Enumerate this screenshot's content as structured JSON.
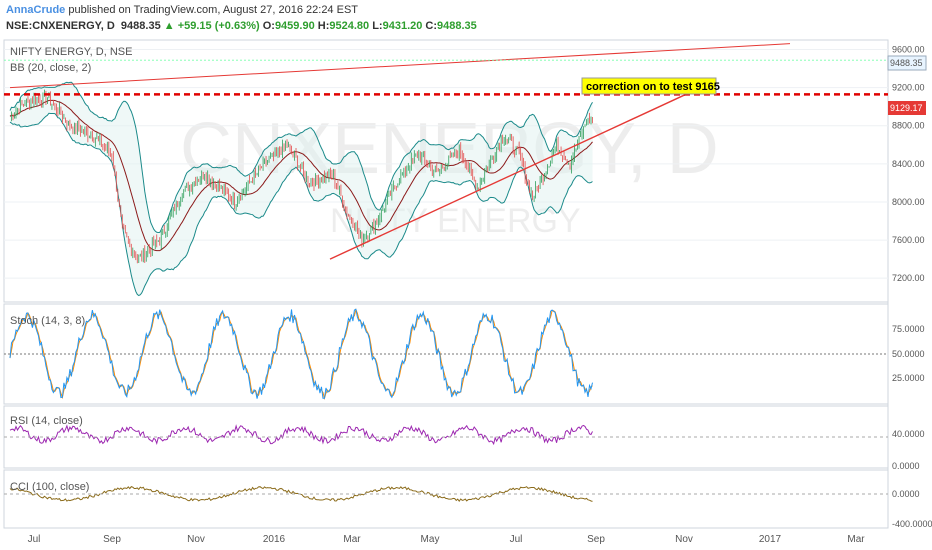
{
  "header": {
    "author": "AnnaCrude",
    "published": " published on TradingView.com, August 27, 2016 22:24 EST",
    "symbol": "NSE:CNXENERGY, D",
    "last": "9488.35",
    "change": "▲ +59.15 (+0.63%)",
    "o_label": "O:",
    "o": "9459.90",
    "h_label": "H:",
    "h": "9524.80",
    "l_label": "L:",
    "l": "9431.20",
    "c_label": "C:",
    "c": "9488.35"
  },
  "panes": {
    "main_title": "NIFTY ENERGY, D, NSE",
    "bb_label": "BB (20, close, 2)",
    "watermark_symbol": "CNXENERGY, D",
    "watermark_name": "NIFTY ENERGY",
    "stoch_label": "Stoch (14, 3, 8)",
    "rsi_label": "RSI (14, close)",
    "cci_label": "CCI (100, close)",
    "annotation": "correction on to test 9165",
    "last_price_tag": "9488.35",
    "level_tag": "9129.17"
  },
  "colors": {
    "candle_up": "#2e9e5b",
    "candle_down": "#e24b4b",
    "bb_band": "#1b8a8a",
    "bb_basis": "#8b1a1a",
    "stoch_k": "#2196f3",
    "stoch_d": "#ff8c00",
    "rsi": "#9c27b0",
    "cci": "#8b6b1a",
    "trendline": "#e53935",
    "annotation_bg": "#ffff00"
  },
  "chart_data": {
    "type": "candlestick",
    "title": "NIFTY ENERGY, D, NSE",
    "x_ticks": [
      "Jul",
      "Sep",
      "Nov",
      "2016",
      "Mar",
      "May",
      "Jul",
      "Sep",
      "Nov",
      "2017",
      "Mar"
    ],
    "price_axis": {
      "ticks": [
        "9600.00",
        "9200.00",
        "8800.00",
        "8400.00",
        "8000.00",
        "7600.00",
        "7200.00"
      ],
      "range": [
        6950,
        9700
      ]
    },
    "price_path_anchors": [
      {
        "x": 0,
        "y": 8900
      },
      {
        "x": 10,
        "y": 9050
      },
      {
        "x": 25,
        "y": 9100
      },
      {
        "x": 40,
        "y": 8800
      },
      {
        "x": 55,
        "y": 8700
      },
      {
        "x": 68,
        "y": 8500
      },
      {
        "x": 75,
        "y": 7700
      },
      {
        "x": 85,
        "y": 7400
      },
      {
        "x": 100,
        "y": 7600
      },
      {
        "x": 115,
        "y": 8100
      },
      {
        "x": 130,
        "y": 8300
      },
      {
        "x": 150,
        "y": 8000
      },
      {
        "x": 170,
        "y": 8400
      },
      {
        "x": 185,
        "y": 8600
      },
      {
        "x": 200,
        "y": 8200
      },
      {
        "x": 215,
        "y": 8300
      },
      {
        "x": 225,
        "y": 7900
      },
      {
        "x": 235,
        "y": 7600
      },
      {
        "x": 245,
        "y": 7800
      },
      {
        "x": 258,
        "y": 8200
      },
      {
        "x": 272,
        "y": 8500
      },
      {
        "x": 285,
        "y": 8300
      },
      {
        "x": 300,
        "y": 8550
      },
      {
        "x": 312,
        "y": 8150
      },
      {
        "x": 320,
        "y": 8400
      },
      {
        "x": 330,
        "y": 8700
      },
      {
        "x": 340,
        "y": 8500
      },
      {
        "x": 349,
        "y": 8050
      },
      {
        "x": 355,
        "y": 8250
      },
      {
        "x": 365,
        "y": 8600
      },
      {
        "x": 374,
        "y": 8400
      },
      {
        "x": 385,
        "y": 8850
      }
    ],
    "bollinger": {
      "upper_offset": 360,
      "lower_offset": 360
    },
    "trendlines": [
      {
        "name": "rising channel top",
        "from": {
          "x": 0,
          "y": 9200
        },
        "to": {
          "x": 390,
          "y": 9620
        }
      },
      {
        "name": "support trend",
        "from": {
          "x": 160,
          "y": 7400
        },
        "to": {
          "x": 340,
          "y": 9130
        }
      },
      {
        "name": "horizontal support",
        "y": 9129.17
      }
    ],
    "annotation_level": 9165,
    "indicators": {
      "stoch": {
        "ticks": [
          "75.0000",
          "50.0000",
          "25.0000"
        ],
        "range": [
          0,
          100
        ],
        "midline": 50
      },
      "rsi": {
        "ticks": [
          "40.0000",
          "0.0000"
        ],
        "range": [
          0,
          100
        ],
        "midline": 50
      },
      "cci": {
        "ticks": [
          "0.0000",
          "-400.0000"
        ],
        "range": [
          -500,
          400
        ],
        "midline": 0
      }
    }
  }
}
